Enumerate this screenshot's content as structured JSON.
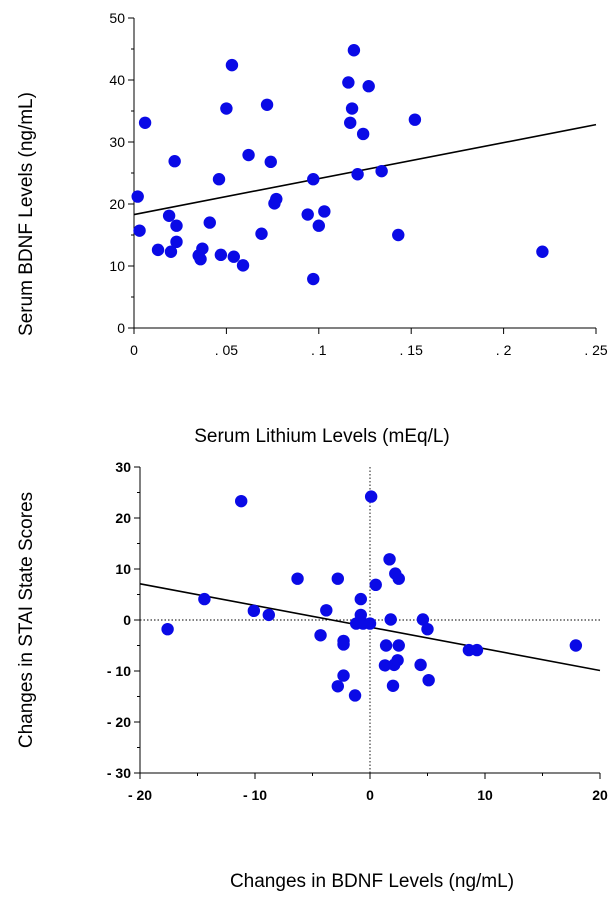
{
  "chart_data": [
    {
      "type": "scatter",
      "title": "",
      "xlabel": "Serum Lithium Levels (mEq/L)",
      "ylabel": "Serum BDNF Levels (ng/mL)",
      "xlim": [
        0,
        0.25
      ],
      "ylim": [
        0,
        50
      ],
      "xticks": [
        0,
        0.05,
        0.1,
        0.15,
        0.2,
        0.25
      ],
      "xtick_labels": [
        "0",
        ". 05",
        ". 1",
        ". 15",
        ". 2",
        ". 25"
      ],
      "yticks": [
        0,
        10,
        20,
        30,
        40,
        50
      ],
      "ytick_labels": [
        "0",
        "10",
        "20",
        "30",
        "40",
        "50"
      ],
      "regression_line": {
        "x": [
          0,
          0.25
        ],
        "y": [
          18.3,
          32.8
        ]
      },
      "points": [
        {
          "x": 0.002,
          "y": 21.2
        },
        {
          "x": 0.003,
          "y": 15.7
        },
        {
          "x": 0.006,
          "y": 33.1
        },
        {
          "x": 0.013,
          "y": 12.6
        },
        {
          "x": 0.019,
          "y": 18.1
        },
        {
          "x": 0.02,
          "y": 12.3
        },
        {
          "x": 0.022,
          "y": 26.9
        },
        {
          "x": 0.023,
          "y": 16.5
        },
        {
          "x": 0.023,
          "y": 13.9
        },
        {
          "x": 0.035,
          "y": 11.7
        },
        {
          "x": 0.036,
          "y": 11.1
        },
        {
          "x": 0.037,
          "y": 12.8
        },
        {
          "x": 0.041,
          "y": 17.0
        },
        {
          "x": 0.046,
          "y": 24.0
        },
        {
          "x": 0.047,
          "y": 11.8
        },
        {
          "x": 0.05,
          "y": 35.4
        },
        {
          "x": 0.053,
          "y": 42.4
        },
        {
          "x": 0.054,
          "y": 11.5
        },
        {
          "x": 0.059,
          "y": 10.1
        },
        {
          "x": 0.062,
          "y": 27.9
        },
        {
          "x": 0.069,
          "y": 15.2
        },
        {
          "x": 0.072,
          "y": 36.0
        },
        {
          "x": 0.074,
          "y": 26.8
        },
        {
          "x": 0.076,
          "y": 20.1
        },
        {
          "x": 0.077,
          "y": 20.8
        },
        {
          "x": 0.094,
          "y": 18.3
        },
        {
          "x": 0.097,
          "y": 7.9
        },
        {
          "x": 0.097,
          "y": 24.0
        },
        {
          "x": 0.1,
          "y": 16.5
        },
        {
          "x": 0.103,
          "y": 18.8
        },
        {
          "x": 0.116,
          "y": 39.6
        },
        {
          "x": 0.117,
          "y": 33.1
        },
        {
          "x": 0.118,
          "y": 35.4
        },
        {
          "x": 0.119,
          "y": 44.8
        },
        {
          "x": 0.121,
          "y": 24.8
        },
        {
          "x": 0.124,
          "y": 31.3
        },
        {
          "x": 0.127,
          "y": 39.0
        },
        {
          "x": 0.134,
          "y": 25.3
        },
        {
          "x": 0.143,
          "y": 15.0
        },
        {
          "x": 0.152,
          "y": 33.6
        },
        {
          "x": 0.221,
          "y": 12.3
        }
      ]
    },
    {
      "type": "scatter",
      "title": "",
      "xlabel": "Changes in BDNF Levels (ng/mL)",
      "ylabel": "Changes in STAI State Scores",
      "xlim": [
        -20,
        20
      ],
      "ylim": [
        -30,
        30
      ],
      "xticks": [
        -20,
        -10,
        0,
        10,
        20
      ],
      "xtick_labels": [
        "- 20",
        "- 10",
        "0",
        "10",
        "20"
      ],
      "yticks": [
        -30,
        -20,
        -10,
        0,
        10,
        20,
        30
      ],
      "ytick_labels": [
        "- 30",
        "- 20",
        "- 10",
        "0",
        "10",
        "20",
        "30"
      ],
      "reference_lines": {
        "x": 0,
        "y": 0
      },
      "regression_line": {
        "x": [
          -20,
          20
        ],
        "y": [
          7.1,
          -9.9
        ]
      },
      "points": [
        {
          "x": -17.6,
          "y": -1.8
        },
        {
          "x": -14.4,
          "y": 4.1
        },
        {
          "x": -11.2,
          "y": 23.3
        },
        {
          "x": -10.1,
          "y": 1.8
        },
        {
          "x": -8.8,
          "y": 1.0
        },
        {
          "x": -6.3,
          "y": 8.1
        },
        {
          "x": -4.3,
          "y": -3.0
        },
        {
          "x": -3.8,
          "y": 1.9
        },
        {
          "x": -2.8,
          "y": 8.1
        },
        {
          "x": -2.8,
          "y": -13.0
        },
        {
          "x": -2.3,
          "y": -4.1
        },
        {
          "x": -2.3,
          "y": -4.8
        },
        {
          "x": -2.3,
          "y": -10.9
        },
        {
          "x": -1.3,
          "y": -14.8
        },
        {
          "x": -1.2,
          "y": -0.7
        },
        {
          "x": -0.8,
          "y": 4.1
        },
        {
          "x": -0.8,
          "y": 1.0
        },
        {
          "x": -0.6,
          "y": -0.7
        },
        {
          "x": 0.0,
          "y": -0.7
        },
        {
          "x": 0.1,
          "y": 24.2
        },
        {
          "x": 0.5,
          "y": 6.9
        },
        {
          "x": 1.3,
          "y": -8.9
        },
        {
          "x": 1.4,
          "y": -5.0
        },
        {
          "x": 1.7,
          "y": 11.9
        },
        {
          "x": 1.8,
          "y": 0.1
        },
        {
          "x": 2.0,
          "y": -12.9
        },
        {
          "x": 2.1,
          "y": -8.8
        },
        {
          "x": 2.2,
          "y": 9.1
        },
        {
          "x": 2.4,
          "y": -7.9
        },
        {
          "x": 2.5,
          "y": -5.0
        },
        {
          "x": 2.5,
          "y": 8.1
        },
        {
          "x": 4.4,
          "y": -8.8
        },
        {
          "x": 4.6,
          "y": 0.1
        },
        {
          "x": 5.0,
          "y": -1.8
        },
        {
          "x": 5.1,
          "y": -11.8
        },
        {
          "x": 8.6,
          "y": -5.9
        },
        {
          "x": 9.3,
          "y": -5.9
        },
        {
          "x": 17.9,
          "y": -5.0
        }
      ]
    }
  ]
}
